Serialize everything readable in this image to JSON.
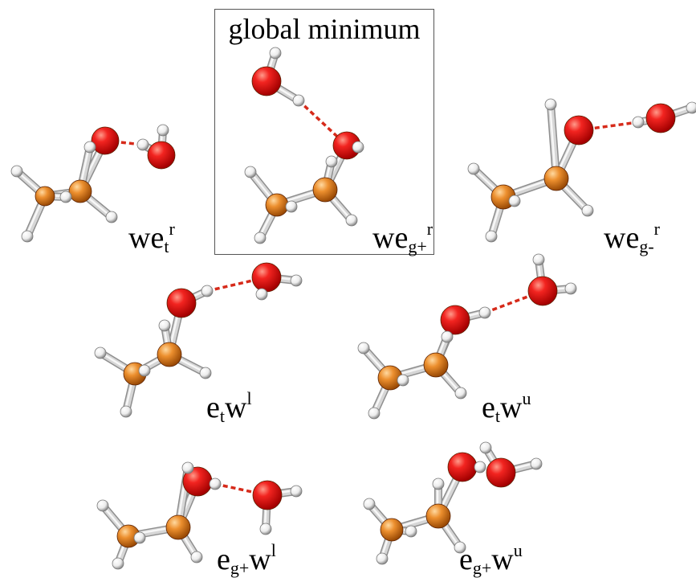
{
  "title": "global minimum",
  "colors": {
    "oxygen": "#e8141a",
    "carbon": "#e98a2a",
    "hydrogen": "#f2f2f2",
    "bond": "#d6d6d6",
    "hbond": "#d62a1a",
    "box_border": "#555555"
  },
  "structures": [
    {
      "id": "we-t-r",
      "base": "we",
      "sub": "t",
      "sup": "r"
    },
    {
      "id": "we-gplus-r",
      "base": "we",
      "sub": "g+",
      "sup": "r",
      "global_minimum": true
    },
    {
      "id": "we-gminus-r",
      "base": "we",
      "sub": "g-",
      "sup": "r"
    },
    {
      "id": "e-t-w-l",
      "base": "e",
      "sub": "t",
      "tail": "w",
      "sup": "l"
    },
    {
      "id": "e-t-w-u",
      "base": "e",
      "sub": "t",
      "tail": "w",
      "sup": "u"
    },
    {
      "id": "e-gplus-w-l",
      "base": "e",
      "sub": "g+",
      "tail": "w",
      "sup": "l"
    },
    {
      "id": "e-gplus-w-u",
      "base": "e",
      "sub": "g+",
      "tail": "w",
      "sup": "u"
    }
  ]
}
